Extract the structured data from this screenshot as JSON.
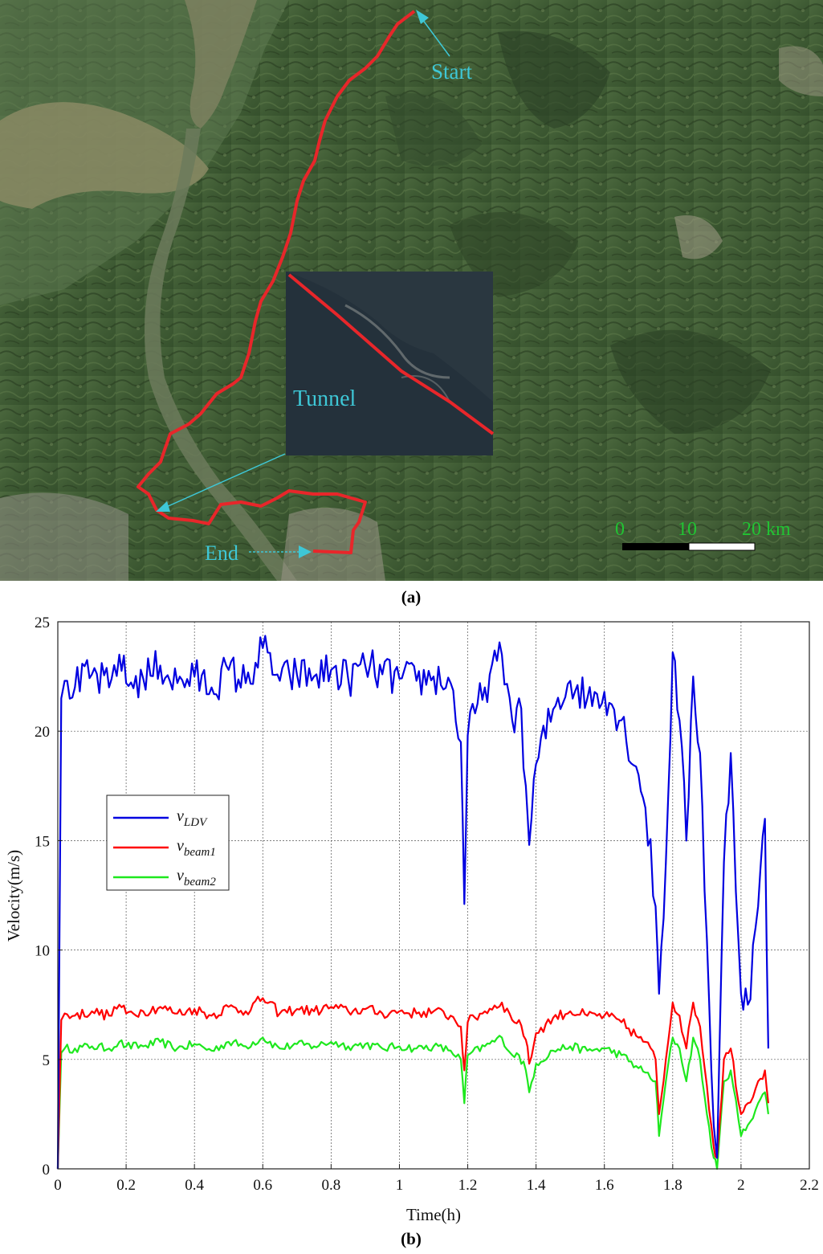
{
  "panel_a": {
    "label": "(a)",
    "start_label": "Start",
    "tunnel_label": "Tunnel",
    "end_label": "End",
    "scale_ticks": [
      "0",
      "10",
      "20 km"
    ],
    "colors": {
      "route": "#e8262a",
      "annotation": "#3ec7d6",
      "scale_text": "#21c433"
    }
  },
  "panel_b": {
    "label": "(b)"
  },
  "chart_data": {
    "type": "line",
    "xlabel": "Time(h)",
    "ylabel": "Velocity(m/s)",
    "xlim": [
      0,
      2.2
    ],
    "ylim": [
      0,
      25
    ],
    "xticks": [
      "0",
      "0.2",
      "0.4",
      "0.6",
      "0.8",
      "1",
      "1.2",
      "1.4",
      "1.6",
      "1.8",
      "2",
      "2.2"
    ],
    "yticks": [
      "0",
      "5",
      "10",
      "15",
      "20",
      "25"
    ],
    "grid": true,
    "legend_position": "left-middle",
    "x": [
      0,
      0.01,
      0.02,
      0.05,
      0.1,
      0.15,
      0.18,
      0.2,
      0.25,
      0.3,
      0.35,
      0.4,
      0.45,
      0.5,
      0.55,
      0.6,
      0.65,
      0.7,
      0.75,
      0.8,
      0.85,
      0.9,
      0.95,
      1.0,
      1.05,
      1.1,
      1.15,
      1.18,
      1.19,
      1.2,
      1.25,
      1.3,
      1.33,
      1.35,
      1.37,
      1.38,
      1.4,
      1.45,
      1.5,
      1.55,
      1.6,
      1.65,
      1.7,
      1.72,
      1.75,
      1.76,
      1.78,
      1.8,
      1.82,
      1.84,
      1.86,
      1.88,
      1.9,
      1.92,
      1.93,
      1.95,
      1.97,
      2.0,
      2.02,
      2.05,
      2.07,
      2.08
    ],
    "series": [
      {
        "name": "v_LDV",
        "color": "#0000e0",
        "values": [
          0,
          21.5,
          22.3,
          22.0,
          22.6,
          22.0,
          23.5,
          22.2,
          22.4,
          23.0,
          22.2,
          22.5,
          22.0,
          22.8,
          22.2,
          23.8,
          22.3,
          22.6,
          22.5,
          22.8,
          22.4,
          23.0,
          22.6,
          22.4,
          22.3,
          22.5,
          22.2,
          19.5,
          12.1,
          19.8,
          22.0,
          23.5,
          20.5,
          21.5,
          17.5,
          14.8,
          18.5,
          21.0,
          22.3,
          21.5,
          21.8,
          20.5,
          18.0,
          16.5,
          12.0,
          8.0,
          14.0,
          23.6,
          20.5,
          15.0,
          22.5,
          19.0,
          10.5,
          2.0,
          0.5,
          14.0,
          19.0,
          8.0,
          7.5,
          12.0,
          16.0,
          5.5
        ]
      },
      {
        "name": "v_beam1",
        "color": "#ff0000",
        "values": [
          0,
          6.8,
          7.1,
          7.0,
          7.2,
          7.0,
          7.5,
          7.1,
          7.2,
          7.4,
          7.1,
          7.3,
          7.0,
          7.4,
          7.2,
          7.8,
          7.1,
          7.3,
          7.2,
          7.4,
          7.2,
          7.3,
          7.1,
          7.2,
          7.1,
          7.2,
          7.0,
          6.5,
          4.5,
          6.7,
          7.2,
          7.6,
          6.8,
          6.8,
          5.9,
          4.8,
          6.2,
          6.9,
          7.2,
          7.0,
          7.0,
          6.7,
          6.0,
          5.8,
          5.0,
          2.5,
          5.0,
          7.6,
          7.0,
          5.5,
          7.6,
          6.5,
          3.8,
          1.0,
          0.5,
          5.0,
          5.5,
          2.5,
          3.0,
          4.0,
          4.5,
          3.0
        ]
      },
      {
        "name": "v_beam2",
        "color": "#1ee81e",
        "values": [
          0,
          5.3,
          5.5,
          5.5,
          5.6,
          5.5,
          5.8,
          5.6,
          5.6,
          5.8,
          5.5,
          5.7,
          5.4,
          5.8,
          5.6,
          6.0,
          5.5,
          5.7,
          5.6,
          5.8,
          5.6,
          5.7,
          5.5,
          5.6,
          5.5,
          5.6,
          5.4,
          5.0,
          3.0,
          5.2,
          5.6,
          6.0,
          5.2,
          5.2,
          4.5,
          3.5,
          4.8,
          5.4,
          5.6,
          5.4,
          5.5,
          5.2,
          4.6,
          4.4,
          4.0,
          1.5,
          4.0,
          6.0,
          5.5,
          4.0,
          6.0,
          5.0,
          2.5,
          0.5,
          0,
          4.0,
          4.5,
          1.5,
          2.0,
          3.0,
          3.5,
          2.5
        ]
      }
    ]
  }
}
